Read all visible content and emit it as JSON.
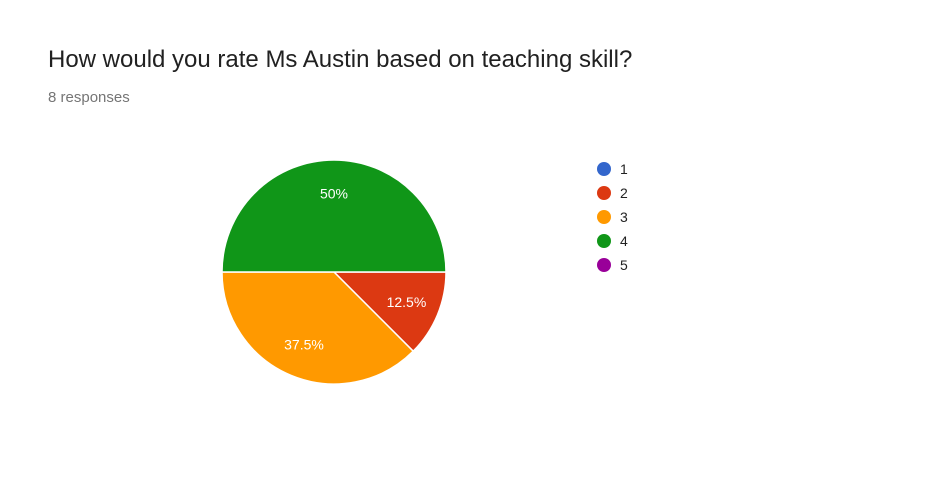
{
  "question": {
    "title": "How would you rate Ms Austin based on teaching skill?",
    "responses": "8 responses"
  },
  "chart_data": {
    "type": "pie",
    "categories": [
      "1",
      "2",
      "3",
      "4",
      "5"
    ],
    "values": [
      0,
      12.5,
      37.5,
      50,
      0
    ],
    "labels": [
      "",
      "12.5%",
      "37.5%",
      "50%",
      ""
    ],
    "colors": [
      "#3366cc",
      "#dc3912",
      "#ff9900",
      "#109618",
      "#990099"
    ],
    "legend": "right"
  }
}
